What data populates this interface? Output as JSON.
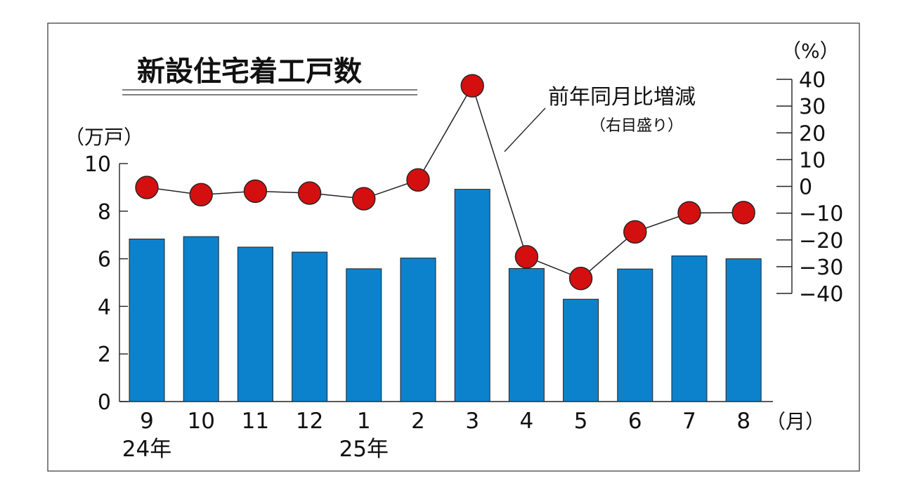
{
  "chart_data": {
    "type": "bar+line",
    "title": "新設住宅着工戸数",
    "categories": [
      "9",
      "10",
      "11",
      "12",
      "1",
      "2",
      "3",
      "4",
      "5",
      "6",
      "7",
      "8"
    ],
    "year_labels": [
      {
        "category_index": 0,
        "label": "24年"
      },
      {
        "category_index": 4,
        "label": "25年"
      }
    ],
    "x_unit": "（月）",
    "left_axis": {
      "unit": "（万戸）",
      "ylim": [
        0,
        10
      ],
      "ticks": [
        0,
        2,
        4,
        6,
        8,
        10
      ]
    },
    "right_axis": {
      "unit": "（%）",
      "ylim": [
        -40,
        40
      ],
      "ticks": [
        40,
        30,
        20,
        10,
        0,
        -10,
        -20,
        -30,
        -40
      ],
      "tick_labels": [
        "40",
        "30",
        "20",
        "10",
        "0",
        "−10",
        "−20",
        "−30",
        "−40"
      ]
    },
    "bar_series": {
      "axis": "left",
      "color": "#0d82cc",
      "values": [
        6.83,
        6.93,
        6.49,
        6.28,
        5.58,
        6.03,
        8.92,
        5.59,
        4.3,
        5.57,
        6.12,
        6.0
      ]
    },
    "line_series": {
      "name": "前年同月比増減",
      "name_note": "（右目盛り）",
      "axis": "right",
      "marker_color": "#d40f10",
      "values": [
        -0.4,
        -3.1,
        -1.8,
        -2.5,
        -4.6,
        2.4,
        37.6,
        -26.3,
        -34.4,
        -17.0,
        -9.9,
        -9.8
      ]
    }
  }
}
